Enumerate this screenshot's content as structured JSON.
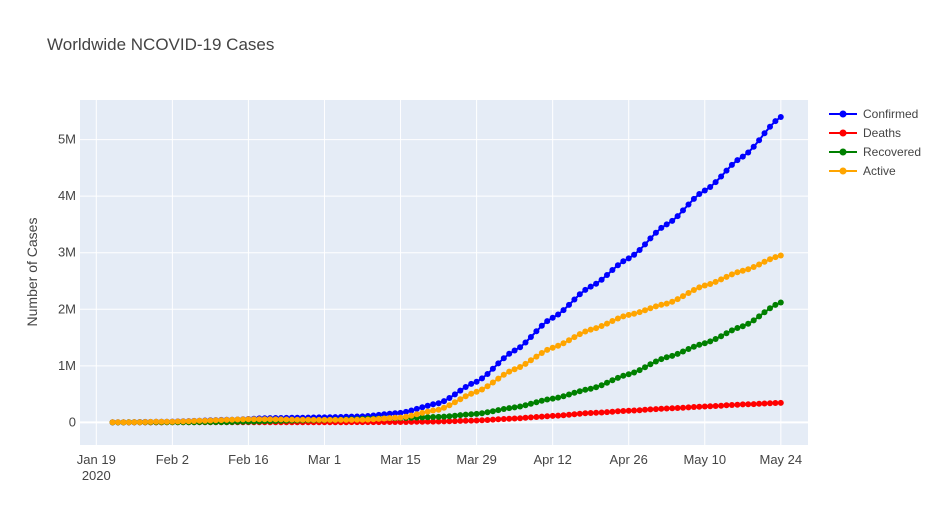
{
  "chart_data": {
    "type": "line",
    "title": "Worldwide NCOVID-19 Cases",
    "xlabel": "",
    "ylabel": "Number of Cases",
    "x_start": "2020-01-22",
    "x_end": "2020-05-24",
    "xlim": [
      "2020-01-16",
      "2020-05-29"
    ],
    "ylim": [
      -400000,
      5700000
    ],
    "x_ticks": [
      {
        "date": "2020-01-19",
        "label": "Jan 19",
        "sublabel": "2020"
      },
      {
        "date": "2020-02-02",
        "label": "Feb 2"
      },
      {
        "date": "2020-02-16",
        "label": "Feb 16"
      },
      {
        "date": "2020-03-01",
        "label": "Mar 1"
      },
      {
        "date": "2020-03-15",
        "label": "Mar 15"
      },
      {
        "date": "2020-03-29",
        "label": "Mar 29"
      },
      {
        "date": "2020-04-12",
        "label": "Apr 12"
      },
      {
        "date": "2020-04-26",
        "label": "Apr 26"
      },
      {
        "date": "2020-05-10",
        "label": "May 10"
      },
      {
        "date": "2020-05-24",
        "label": "May 24"
      }
    ],
    "y_ticks": [
      {
        "value": 0,
        "label": "0"
      },
      {
        "value": 1000000,
        "label": "1M"
      },
      {
        "value": 2000000,
        "label": "2M"
      },
      {
        "value": 3000000,
        "label": "3M"
      },
      {
        "value": 4000000,
        "label": "4M"
      },
      {
        "value": 5000000,
        "label": "5M"
      }
    ],
    "grid": true,
    "legend_position": "top-right",
    "series": [
      {
        "name": "Confirmed",
        "color": "#0000ff",
        "knots": [
          [
            "2020-01-22",
            555
          ],
          [
            "2020-02-01",
            12000
          ],
          [
            "2020-02-12",
            45000
          ],
          [
            "2020-02-20",
            76000
          ],
          [
            "2020-03-01",
            88000
          ],
          [
            "2020-03-08",
            106000
          ],
          [
            "2020-03-15",
            168000
          ],
          [
            "2020-03-22",
            337000
          ],
          [
            "2020-03-29",
            720000
          ],
          [
            "2020-04-05",
            1270000
          ],
          [
            "2020-04-12",
            1850000
          ],
          [
            "2020-04-19",
            2400000
          ],
          [
            "2020-04-26",
            2900000
          ],
          [
            "2020-05-03",
            3500000
          ],
          [
            "2020-05-10",
            4100000
          ],
          [
            "2020-05-17",
            4700000
          ],
          [
            "2020-05-24",
            5400000
          ]
        ]
      },
      {
        "name": "Deaths",
        "color": "#ff0000",
        "knots": [
          [
            "2020-01-22",
            17
          ],
          [
            "2020-02-12",
            1100
          ],
          [
            "2020-03-01",
            3000
          ],
          [
            "2020-03-15",
            6500
          ],
          [
            "2020-03-22",
            15000
          ],
          [
            "2020-03-29",
            34000
          ],
          [
            "2020-04-05",
            69000
          ],
          [
            "2020-04-12",
            114000
          ],
          [
            "2020-04-19",
            165000
          ],
          [
            "2020-04-26",
            206000
          ],
          [
            "2020-05-03",
            245000
          ],
          [
            "2020-05-10",
            280000
          ],
          [
            "2020-05-17",
            317000
          ],
          [
            "2020-05-24",
            345000
          ]
        ]
      },
      {
        "name": "Recovered",
        "color": "#008000",
        "knots": [
          [
            "2020-01-22",
            28
          ],
          [
            "2020-02-12",
            5000
          ],
          [
            "2020-03-01",
            42000
          ],
          [
            "2020-03-15",
            77000
          ],
          [
            "2020-03-22",
            97000
          ],
          [
            "2020-03-29",
            150000
          ],
          [
            "2020-04-05",
            264000
          ],
          [
            "2020-04-12",
            420000
          ],
          [
            "2020-04-19",
            595000
          ],
          [
            "2020-04-26",
            850000
          ],
          [
            "2020-05-03",
            1150000
          ],
          [
            "2020-05-10",
            1400000
          ],
          [
            "2020-05-17",
            1700000
          ],
          [
            "2020-05-24",
            2120000
          ]
        ]
      },
      {
        "name": "Active",
        "color": "#ffa500",
        "knots": [
          [
            "2020-01-22",
            510
          ],
          [
            "2020-02-01",
            11000
          ],
          [
            "2020-02-17",
            57000
          ],
          [
            "2020-03-01",
            43000
          ],
          [
            "2020-03-08",
            45000
          ],
          [
            "2020-03-15",
            85000
          ],
          [
            "2020-03-22",
            225000
          ],
          [
            "2020-03-29",
            540000
          ],
          [
            "2020-04-05",
            940000
          ],
          [
            "2020-04-12",
            1320000
          ],
          [
            "2020-04-19",
            1640000
          ],
          [
            "2020-04-26",
            1900000
          ],
          [
            "2020-05-03",
            2100000
          ],
          [
            "2020-05-10",
            2420000
          ],
          [
            "2020-05-17",
            2680000
          ],
          [
            "2020-05-24",
            2950000
          ]
        ]
      }
    ]
  }
}
